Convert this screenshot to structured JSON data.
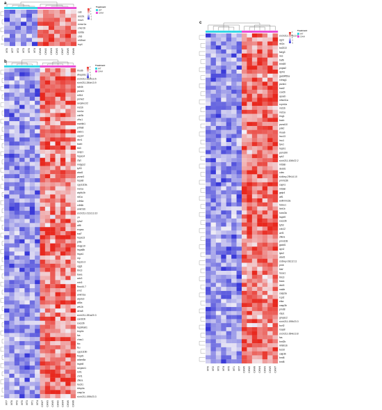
{
  "colors": {
    "low": "#3a3ad8",
    "mid": "#f3f0f6",
    "high": "#e8281e",
    "wt_bar": "#36d6e6",
    "chm_bar": "#e84fd6",
    "dendro": "#666666"
  },
  "legend": {
    "title": "Treatment",
    "groups": [
      "WT",
      "CHM"
    ],
    "scale_ticks": [
      "2",
      "1",
      "0",
      "-1",
      "-2"
    ]
  },
  "chart_data": [
    {
      "type": "heatmap",
      "panel": "a",
      "columns": [
        "WT6",
        "WT7",
        "WT2",
        "WT3",
        "WT5",
        "WT4",
        "CHM8",
        "CHM2",
        "CHM4",
        "CHM3",
        "CHM7",
        "CHM5",
        "CHM6"
      ],
      "rows": [
        "ca6",
        "ace2a",
        "mov1",
        "mmcr1a",
        "cmcr1b",
        "scn8a",
        "chl3",
        "sh2bsd",
        "rsp4"
      ],
      "wt_count": 6,
      "value_range": [
        -2,
        2
      ]
    },
    {
      "type": "heatmap",
      "panel": "b",
      "columns": [
        "WT7",
        "WT6",
        "WT2",
        "WT5",
        "WT3",
        "WT1",
        "WT4",
        "CHM7",
        "CHM3",
        "CHM5",
        "CHM2",
        "CHM4",
        "CHM6",
        "CHM8"
      ],
      "rows": [
        "rhodb",
        "dhop2dc",
        "si:ch211-262h13.5",
        "si:ch211-284e13.9",
        "rab4b",
        "psme1",
        "mfl14",
        "psme2",
        "serpine1/2",
        "mcl1b",
        "nox1a",
        "calr3b",
        "zfhc1",
        "mcrblb1",
        "pdha8",
        "stxbr1",
        "usp14",
        "dsn1",
        "baxb",
        "tfd3",
        "sesp1",
        "hspa14",
        "stys",
        "mdgcs2",
        "tp53",
        "atad1",
        "psme3",
        "hspa8",
        "cpp1115a",
        "mcl1a",
        "atp6v1b",
        "rdt1a",
        "cdh6a",
        "cdh6b",
        "ankrb1b",
        "si:ch211-212c13.10",
        "c4",
        "rpfa2",
        "atf6",
        "eopea",
        "trat7",
        "hspa13",
        "pdia",
        "dnajc10",
        "hspa8b",
        "hspa1",
        "nrp",
        "hsp13.3",
        "ugg1",
        "bbc3",
        "baxa",
        "adc3",
        "min3",
        "fbxo44.7",
        "ern2",
        "ankrb1a",
        "atp2e3",
        "alf4a",
        "wfs1b",
        "dera5",
        "si:ch211-281a20.3",
        "card10b",
        "socs3b",
        "hsp90ab1",
        "tmp2a",
        "fas",
        "chac1",
        "fbx",
        "fsu",
        "cpp1115b",
        "fmp2b",
        "adam8a",
        "hspb8",
        "serpine1",
        "rstr1",
        "chrt1",
        "cflera",
        "hsc91",
        "rbbp4a",
        "casp1a",
        "si:ch211-195h23.3"
      ],
      "wt_count": 7,
      "value_range": [
        -2,
        2
      ]
    },
    {
      "type": "heatmap",
      "panel": "c",
      "columns": [
        "WT6",
        "WT2",
        "WT3",
        "WT4",
        "WT5",
        "WT1",
        "WT7",
        "CHM6",
        "CHM2",
        "CHM8",
        "CHM4",
        "CHM3",
        "CHM5",
        "CHM7"
      ],
      "rows": [
        "si:ch211-284e13.9",
        "agr3",
        "nk1a",
        "bcl2l10",
        "faeg3",
        "nes",
        "traf6",
        "trim69",
        "pnpla2",
        "dyrk1",
        "gadd45ba",
        "rxlnsg1",
        "psmb1",
        "trad2",
        "cox2b",
        "apoeb",
        "mfsd11a",
        "rcpm1a",
        "mcl1b",
        "mcl1a",
        "rrsg1",
        "baxb",
        "psmd10",
        "pdk2",
        "rhoab",
        "hsc13",
        "hsc1",
        "tyw1",
        "hspb1",
        "psm190",
        "rpk2",
        "si:ch211-106h22.2",
        "mt3ab",
        "dedd1",
        "cdec",
        "si:dkey-29h14.10",
        "pmm13b",
        "capn1",
        "mt3ab",
        "gstp4",
        "atf1",
        "eellmmc3a",
        "hslou1",
        "hbr1b",
        "socs3a",
        "hspb9",
        "socs3b",
        "tp53",
        "cdc12",
        "wrf3",
        "cflera",
        "pmn108",
        "gadd1",
        "dyn2",
        "lipb2",
        "atad1",
        "si:dkey-33c12.11",
        "prnb",
        "fdsf",
        "hsoe1",
        "bbc3",
        "baxa",
        "dsb3",
        "mstfe",
        "casp3a",
        "rcpl2",
        "etka",
        "casp3b",
        "pmd8",
        "xbp1",
        "gmpsc2",
        "si:ch211-195h23.3",
        "bcrf2",
        "rsap8",
        "si:ch211-284e13.8",
        "fas",
        "bmf2b",
        "inhbb1b",
        "bcl10",
        "calp3b",
        "bmt8",
        "bmf8"
      ],
      "wt_count": 7,
      "value_range": [
        -2,
        2
      ]
    }
  ]
}
